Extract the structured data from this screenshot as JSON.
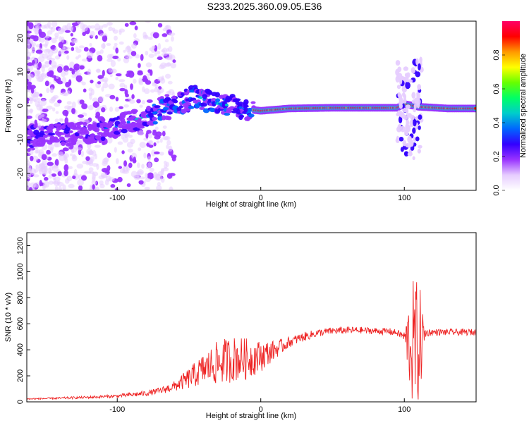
{
  "figure_title": "S233.2025.360.09.05.E36",
  "chart_data": [
    {
      "type": "heatmap",
      "title": "S233.2025.360.09.05.E36",
      "xlabel": "Height of straight line (km)",
      "ylabel": "Frequency (Hz)",
      "xlim": [
        -163,
        150
      ],
      "ylim": [
        -25,
        25
      ],
      "xticks": [
        -100,
        0,
        100
      ],
      "yticks": [
        -20,
        -10,
        0,
        10,
        20
      ],
      "colorbar": {
        "label": "Normalized spectral amplitude",
        "range": [
          0,
          1
        ],
        "ticks": [
          "0.0",
          "0.2",
          "0.4",
          "0.6",
          "0.8"
        ],
        "colors": [
          "#ffffff",
          "#e6ccff",
          "#9933ff",
          "#3300ff",
          "#0066ff",
          "#00cccc",
          "#00ff66",
          "#66ff00",
          "#ffff00",
          "#ff9900",
          "#ff0000",
          "#ff0066"
        ]
      },
      "ridge": {
        "description": "Main spectral ridge frequency vs height",
        "x": [
          -160,
          -140,
          -120,
          -100,
          -80,
          -60,
          -45,
          -35,
          -20,
          -10,
          0,
          20,
          50,
          80,
          95,
          100,
          110,
          130,
          150
        ],
        "y": [
          -9,
          -8.5,
          -8,
          -6,
          -3,
          0,
          3,
          1,
          0,
          -1,
          -1.5,
          -0.8,
          -0.6,
          -0.6,
          -0.6,
          0.5,
          -0.3,
          -0.8,
          -0.8
        ]
      },
      "features": [
        {
          "name": "scatter_noise",
          "x_range": [
            -163,
            -60
          ],
          "y_range": [
            -25,
            25
          ]
        },
        {
          "name": "strong_line",
          "x_range": [
            -5,
            150
          ],
          "y": -0.8
        },
        {
          "name": "burst",
          "x_range": [
            95,
            112
          ],
          "y_range": [
            -16,
            14
          ]
        }
      ]
    },
    {
      "type": "line",
      "xlabel": "Height of straight line (km)",
      "ylabel": "SNR (10 * v/v)",
      "xlim": [
        -163,
        150
      ],
      "ylim": [
        0,
        1300
      ],
      "xticks": [
        -100,
        0,
        100
      ],
      "yticks": [
        0,
        200,
        400,
        600,
        800,
        1000,
        1200
      ],
      "color": "#ee2222",
      "series": [
        {
          "name": "SNR envelope",
          "x": [
            -163,
            -140,
            -120,
            -100,
            -90,
            -80,
            -70,
            -60,
            -50,
            -40,
            -30,
            -20,
            -10,
            0,
            10,
            20,
            30,
            40,
            50,
            60,
            70,
            80,
            90,
            95,
            100,
            105,
            110,
            115,
            120,
            130,
            140,
            150
          ],
          "mean": [
            22,
            28,
            35,
            45,
            55,
            65,
            85,
            120,
            180,
            250,
            300,
            330,
            330,
            350,
            400,
            460,
            500,
            530,
            545,
            550,
            550,
            545,
            540,
            530,
            500,
            450,
            450,
            530,
            535,
            535,
            535,
            535
          ],
          "amplitude": [
            6,
            8,
            10,
            12,
            18,
            20,
            25,
            40,
            80,
            120,
            170,
            180,
            160,
            120,
            70,
            40,
            35,
            30,
            28,
            28,
            26,
            26,
            26,
            26,
            40,
            480,
            500,
            30,
            25,
            25,
            25,
            25
          ]
        }
      ]
    }
  ]
}
